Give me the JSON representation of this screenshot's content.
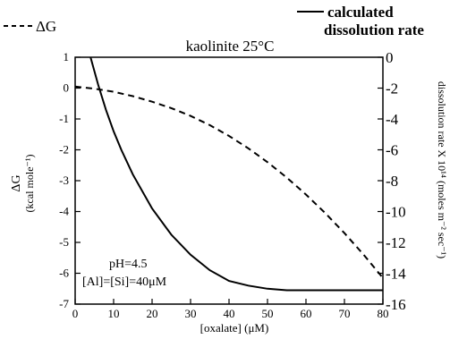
{
  "chart_data": {
    "type": "line",
    "title": "kaolinite 25°C",
    "xlabel": "[oxalate]  (μM)",
    "ylabel_left_main": "ΔG",
    "ylabel_left_sub": "(kcal mole⁻¹)",
    "ylabel_right": "dissolution rate X 10¹⁴ (moles m⁻² sec⁻¹)",
    "xlim": [
      0,
      80
    ],
    "ylim_left": [
      -7,
      1
    ],
    "ylim_right": [
      -16,
      0
    ],
    "x_ticks": [
      "0",
      "10",
      "20",
      "30",
      "40",
      "50",
      "60",
      "70",
      "80"
    ],
    "y_left_ticks": [
      "1",
      "0",
      "-1",
      "-2",
      "-3",
      "-4",
      "-5",
      "-6",
      "-7"
    ],
    "y_right_ticks": [
      "0",
      "-2",
      "-4",
      "-6",
      "-8",
      "-10",
      "-12",
      "-14",
      "-16"
    ],
    "legend": [
      {
        "name": "ΔG",
        "style": "dashed"
      },
      {
        "name_line1": "calculated",
        "name_line2": "dissolution rate",
        "style": "solid"
      }
    ],
    "annotations": [
      "pH=4.5",
      "[Al]=[Si]=40μM"
    ],
    "series": [
      {
        "name": "ΔG",
        "axis": "left",
        "style": "dashed",
        "x": [
          0,
          5,
          10,
          15,
          20,
          25,
          30,
          35,
          40,
          45,
          50,
          55,
          60,
          65,
          70,
          75,
          80
        ],
        "y": [
          0.05,
          -0.02,
          -0.12,
          -0.26,
          -0.44,
          -0.65,
          -0.9,
          -1.2,
          -1.55,
          -1.95,
          -2.4,
          -2.9,
          -3.45,
          -4.05,
          -4.7,
          -5.4,
          -6.15
        ]
      },
      {
        "name": "calculated dissolution rate",
        "axis": "right",
        "style": "solid",
        "x": [
          4,
          6,
          8,
          10,
          12,
          15,
          20,
          25,
          30,
          35,
          40,
          45,
          50,
          55,
          60,
          70,
          80
        ],
        "y": [
          0,
          -1.8,
          -3.4,
          -4.8,
          -6.0,
          -7.6,
          -9.8,
          -11.5,
          -12.8,
          -13.8,
          -14.5,
          -14.8,
          -15.0,
          -15.1,
          -15.1,
          -15.1,
          -15.1
        ]
      }
    ]
  }
}
